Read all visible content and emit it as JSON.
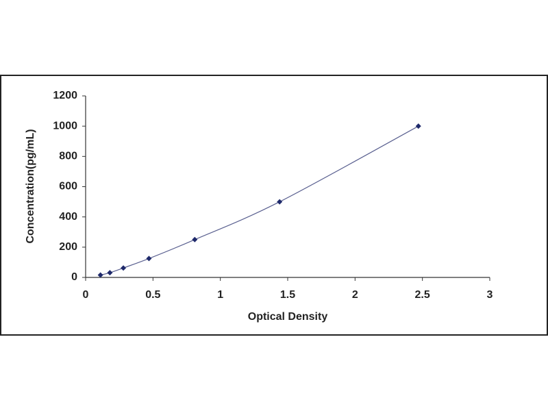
{
  "chart_data": {
    "type": "scatter",
    "x_label": "Optical Density",
    "y_label": "Concentration(pg/mL)",
    "x": [
      0.11,
      0.18,
      0.28,
      0.47,
      0.81,
      1.44,
      2.47
    ],
    "values": [
      15.6,
      31.25,
      62.5,
      125,
      250,
      500,
      1000
    ],
    "color": "#1f2a6b",
    "line_color": "#5a6090",
    "trendline": true,
    "xlim": [
      0,
      3
    ],
    "xticks": [
      0,
      0.5,
      1,
      1.5,
      2,
      2.5,
      3
    ],
    "ylim": [
      0,
      1200
    ],
    "yticks": [
      0,
      200,
      400,
      600,
      800,
      1000,
      1200
    ],
    "grid": false
  }
}
